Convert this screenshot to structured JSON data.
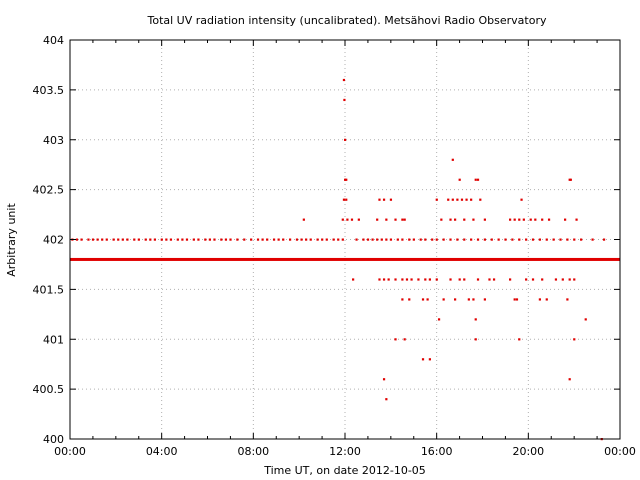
{
  "chart_data": {
    "type": "scatter",
    "title": "Total UV radiation intensity (uncalibrated). Metsähovi Radio Observatory",
    "xlabel": "Time UT, on date 2012-10-05",
    "ylabel": "Arbitrary unit",
    "xlim": [
      0,
      24
    ],
    "ylim": [
      400,
      404
    ],
    "grid": true,
    "x_tick_labels": [
      "00:00",
      "04:00",
      "08:00",
      "12:00",
      "16:00",
      "20:00",
      "00:00"
    ],
    "x_tick_values": [
      0,
      4,
      8,
      12,
      16,
      20,
      24
    ],
    "y_tick_labels": [
      "400",
      "400.5",
      "401",
      "401.5",
      "402",
      "402.5",
      "403",
      "403.5",
      "404"
    ],
    "y_tick_values": [
      400,
      400.5,
      401,
      401.5,
      402,
      402.5,
      403,
      403.5,
      404
    ],
    "marker_color": "#e00000",
    "series": [
      {
        "name": "",
        "x_start": 0,
        "x_end": 24,
        "y": 401.8,
        "description_values_dense": true
      }
    ],
    "points": [
      [
        0.1,
        402.0
      ],
      [
        0.3,
        402.0
      ],
      [
        0.5,
        402.0
      ],
      [
        0.8,
        402.0
      ],
      [
        1.0,
        402.0
      ],
      [
        1.2,
        402.0
      ],
      [
        1.4,
        402.0
      ],
      [
        1.6,
        402.0
      ],
      [
        1.9,
        402.0
      ],
      [
        2.1,
        402.0
      ],
      [
        2.3,
        402.0
      ],
      [
        2.5,
        402.0
      ],
      [
        2.8,
        402.0
      ],
      [
        3.0,
        402.0
      ],
      [
        3.3,
        402.0
      ],
      [
        3.5,
        402.0
      ],
      [
        3.7,
        402.0
      ],
      [
        4.0,
        402.0
      ],
      [
        4.2,
        402.0
      ],
      [
        4.4,
        402.0
      ],
      [
        4.7,
        402.0
      ],
      [
        4.9,
        402.0
      ],
      [
        5.1,
        402.0
      ],
      [
        5.4,
        402.0
      ],
      [
        5.6,
        402.0
      ],
      [
        5.9,
        402.0
      ],
      [
        6.1,
        402.0
      ],
      [
        6.3,
        402.0
      ],
      [
        6.6,
        402.0
      ],
      [
        6.8,
        402.0
      ],
      [
        7.0,
        402.0
      ],
      [
        7.3,
        402.0
      ],
      [
        7.6,
        402.0
      ],
      [
        7.9,
        402.0
      ],
      [
        8.2,
        402.0
      ],
      [
        8.4,
        402.0
      ],
      [
        8.6,
        402.0
      ],
      [
        8.9,
        402.0
      ],
      [
        9.1,
        402.0
      ],
      [
        9.3,
        402.0
      ],
      [
        9.6,
        402.0
      ],
      [
        9.9,
        402.0
      ],
      [
        10.1,
        402.0
      ],
      [
        10.3,
        402.0
      ],
      [
        10.5,
        402.0
      ],
      [
        10.8,
        402.0
      ],
      [
        11.0,
        402.0
      ],
      [
        11.2,
        402.0
      ],
      [
        11.5,
        402.0
      ],
      [
        11.7,
        402.0
      ],
      [
        11.9,
        402.0
      ],
      [
        10.2,
        402.2
      ],
      [
        11.95,
        403.6
      ],
      [
        11.97,
        403.4
      ],
      [
        12.0,
        403.0
      ],
      [
        12.0,
        402.6
      ],
      [
        12.05,
        402.6
      ],
      [
        11.95,
        402.4
      ],
      [
        12.05,
        402.4
      ],
      [
        11.9,
        402.2
      ],
      [
        12.1,
        402.2
      ],
      [
        12.3,
        402.2
      ],
      [
        12.6,
        402.2
      ],
      [
        12.35,
        401.6
      ],
      [
        12.5,
        402.0
      ],
      [
        12.8,
        402.0
      ],
      [
        13.0,
        402.0
      ],
      [
        13.2,
        402.0
      ],
      [
        13.4,
        402.0
      ],
      [
        13.6,
        402.0
      ],
      [
        13.8,
        402.0
      ],
      [
        14.0,
        402.0
      ],
      [
        14.3,
        402.0
      ],
      [
        14.5,
        402.0
      ],
      [
        14.8,
        402.0
      ],
      [
        15.0,
        402.0
      ],
      [
        15.3,
        402.0
      ],
      [
        15.5,
        402.0
      ],
      [
        15.8,
        402.0
      ],
      [
        16.0,
        402.0
      ],
      [
        16.3,
        402.0
      ],
      [
        16.6,
        402.0
      ],
      [
        16.9,
        402.0
      ],
      [
        17.2,
        402.0
      ],
      [
        17.5,
        402.0
      ],
      [
        17.8,
        402.0
      ],
      [
        18.1,
        402.0
      ],
      [
        18.4,
        402.0
      ],
      [
        18.7,
        402.0
      ],
      [
        19.0,
        402.0
      ],
      [
        19.3,
        402.0
      ],
      [
        19.6,
        402.0
      ],
      [
        19.9,
        402.0
      ],
      [
        20.2,
        402.0
      ],
      [
        20.5,
        402.0
      ],
      [
        20.8,
        402.0
      ],
      [
        21.1,
        402.0
      ],
      [
        21.4,
        402.0
      ],
      [
        21.7,
        402.0
      ],
      [
        22.0,
        402.0
      ],
      [
        22.3,
        402.0
      ],
      [
        22.8,
        402.0
      ],
      [
        23.3,
        402.0
      ],
      [
        13.4,
        402.2
      ],
      [
        13.5,
        402.4
      ],
      [
        13.7,
        402.4
      ],
      [
        13.8,
        402.2
      ],
      [
        14.0,
        402.4
      ],
      [
        14.2,
        402.2
      ],
      [
        14.5,
        402.2
      ],
      [
        14.6,
        402.2
      ],
      [
        13.5,
        401.6
      ],
      [
        13.7,
        401.6
      ],
      [
        13.9,
        401.6
      ],
      [
        14.2,
        401.6
      ],
      [
        14.5,
        401.6
      ],
      [
        14.7,
        401.6
      ],
      [
        14.9,
        401.6
      ],
      [
        15.2,
        401.6
      ],
      [
        15.5,
        401.6
      ],
      [
        15.7,
        401.6
      ],
      [
        14.5,
        401.4
      ],
      [
        14.8,
        401.4
      ],
      [
        15.4,
        401.4
      ],
      [
        15.6,
        401.4
      ],
      [
        14.2,
        401.0
      ],
      [
        14.6,
        401.0
      ],
      [
        13.7,
        400.6
      ],
      [
        13.8,
        400.4
      ],
      [
        15.4,
        400.8
      ],
      [
        15.7,
        400.8
      ],
      [
        16.0,
        402.4
      ],
      [
        16.2,
        402.2
      ],
      [
        16.5,
        402.4
      ],
      [
        16.6,
        402.2
      ],
      [
        16.7,
        402.4
      ],
      [
        16.8,
        402.2
      ],
      [
        16.9,
        402.4
      ],
      [
        17.0,
        402.6
      ],
      [
        17.1,
        402.4
      ],
      [
        17.2,
        402.2
      ],
      [
        17.3,
        402.4
      ],
      [
        17.5,
        402.4
      ],
      [
        17.6,
        402.2
      ],
      [
        17.7,
        402.6
      ],
      [
        17.8,
        402.6
      ],
      [
        17.9,
        402.4
      ],
      [
        18.1,
        402.2
      ],
      [
        16.7,
        402.8
      ],
      [
        16.0,
        401.6
      ],
      [
        16.3,
        401.4
      ],
      [
        16.6,
        401.6
      ],
      [
        16.8,
        401.4
      ],
      [
        17.0,
        401.6
      ],
      [
        17.2,
        401.6
      ],
      [
        17.4,
        401.4
      ],
      [
        17.6,
        401.4
      ],
      [
        17.8,
        401.6
      ],
      [
        18.1,
        401.4
      ],
      [
        18.3,
        401.6
      ],
      [
        18.5,
        401.6
      ],
      [
        16.1,
        401.2
      ],
      [
        17.7,
        401.2
      ],
      [
        17.7,
        401.0
      ],
      [
        19.2,
        402.2
      ],
      [
        19.4,
        402.2
      ],
      [
        19.6,
        402.2
      ],
      [
        19.7,
        402.4
      ],
      [
        19.8,
        402.2
      ],
      [
        20.1,
        402.2
      ],
      [
        20.3,
        402.2
      ],
      [
        20.6,
        402.2
      ],
      [
        20.9,
        402.2
      ],
      [
        21.6,
        402.2
      ],
      [
        22.1,
        402.2
      ],
      [
        21.8,
        402.6
      ],
      [
        21.85,
        402.6
      ],
      [
        19.2,
        401.6
      ],
      [
        19.5,
        401.4
      ],
      [
        19.4,
        401.4
      ],
      [
        19.9,
        401.6
      ],
      [
        20.2,
        401.6
      ],
      [
        20.5,
        401.4
      ],
      [
        20.6,
        401.6
      ],
      [
        20.8,
        401.4
      ],
      [
        21.2,
        401.6
      ],
      [
        21.5,
        401.6
      ],
      [
        21.7,
        401.4
      ],
      [
        21.8,
        401.6
      ],
      [
        22.0,
        401.6
      ],
      [
        22.5,
        401.2
      ],
      [
        19.6,
        401.0
      ],
      [
        22.0,
        401.0
      ],
      [
        21.8,
        400.6
      ],
      [
        23.2,
        400.0
      ]
    ]
  }
}
